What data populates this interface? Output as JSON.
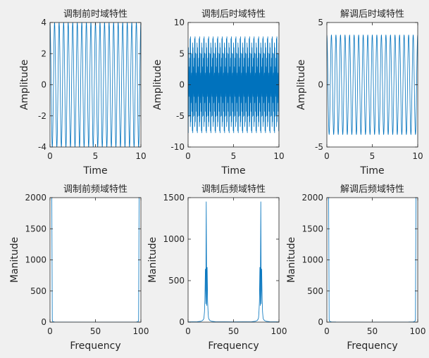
{
  "figure": {
    "background": "#f0f0f0",
    "line_color": "#0072bd",
    "axes_color": "#262626"
  },
  "chart_data": [
    {
      "type": "line",
      "title": "调制前时域特性",
      "xlabel": "Time",
      "ylabel": "Amplitude",
      "xlim": [
        0,
        10
      ],
      "ylim": [
        -4,
        4
      ],
      "xticks": [
        0,
        5,
        10
      ],
      "xtick_labels": [
        "0",
        "5",
        "10"
      ],
      "yticks": [
        -4,
        -2,
        0,
        2,
        4
      ],
      "ytick_labels": [
        "-4",
        "-2",
        "0",
        "2",
        "4"
      ],
      "signal": {
        "kind": "sine",
        "amplitude": 4,
        "frequency": 2,
        "sample_rate": 100,
        "duration": 10
      }
    },
    {
      "type": "line",
      "title": "调制后时域特性",
      "xlabel": "Time",
      "ylabel": "Amplitude",
      "xlim": [
        0,
        10
      ],
      "ylim": [
        -10,
        10
      ],
      "xticks": [
        0,
        5,
        10
      ],
      "xtick_labels": [
        "0",
        "5",
        "10"
      ],
      "yticks": [
        -10,
        -5,
        0,
        5,
        10
      ],
      "ytick_labels": [
        "-10",
        "-5",
        "0",
        "5",
        "10"
      ],
      "signal": {
        "kind": "dsb",
        "amplitude": 8,
        "message_frequency": 2,
        "carrier_frequency": 20,
        "sample_rate": 100,
        "duration": 10
      }
    },
    {
      "type": "line",
      "title": "解调后时域特性",
      "xlabel": "Time",
      "ylabel": "Amplitude",
      "xlim": [
        0,
        10
      ],
      "ylim": [
        -5,
        5
      ],
      "xticks": [
        0,
        5,
        10
      ],
      "xtick_labels": [
        "0",
        "5",
        "10"
      ],
      "yticks": [
        -5,
        0,
        5
      ],
      "ytick_labels": [
        "-5",
        "0",
        "5"
      ],
      "signal": {
        "kind": "sine",
        "amplitude": 4,
        "frequency": 2,
        "sample_rate": 100,
        "duration": 10
      }
    },
    {
      "type": "line",
      "title": "调制前频域特性",
      "xlabel": "Frequency",
      "ylabel": "Manitude",
      "xlim": [
        0,
        100
      ],
      "ylim": [
        0,
        2000
      ],
      "xticks": [
        0,
        50,
        100
      ],
      "xtick_labels": [
        "0",
        "50",
        "100"
      ],
      "yticks": [
        0,
        500,
        1000,
        1500,
        2000
      ],
      "ytick_labels": [
        "0",
        "500",
        "1000",
        "1500",
        "2000"
      ],
      "x": [
        0,
        0.5,
        1,
        1.5,
        2,
        2.5,
        3,
        4,
        5,
        10,
        50,
        90,
        95,
        96,
        97,
        97.5,
        98,
        98.5,
        99,
        99.5,
        100
      ],
      "y": [
        2000,
        2000,
        2000,
        2000,
        2000,
        40,
        10,
        5,
        2,
        1,
        0,
        1,
        2,
        5,
        10,
        40,
        2000,
        2000,
        2000,
        2000,
        2000
      ]
    },
    {
      "type": "line",
      "title": "调制后频域特性",
      "xlabel": "Frequency",
      "ylabel": "Manitude",
      "xlim": [
        0,
        100
      ],
      "ylim": [
        0,
        1500
      ],
      "xticks": [
        0,
        50,
        100
      ],
      "xtick_labels": [
        "0",
        "50",
        "100"
      ],
      "yticks": [
        0,
        500,
        1000,
        1500
      ],
      "ytick_labels": [
        "0",
        "500",
        "1000",
        "1500"
      ],
      "x": [
        0,
        10,
        14,
        16,
        17,
        17.5,
        18,
        18.5,
        19,
        19.5,
        20,
        20.5,
        21,
        21.5,
        22,
        22.5,
        23,
        24,
        26,
        30,
        50,
        70,
        74,
        76,
        77,
        77.5,
        78,
        78.5,
        79,
        79.5,
        80,
        80.5,
        81,
        81.5,
        82,
        82.5,
        83,
        84,
        86,
        90,
        100
      ],
      "y": [
        3,
        5,
        10,
        20,
        35,
        50,
        120,
        260,
        640,
        220,
        1450,
        200,
        660,
        250,
        120,
        50,
        35,
        20,
        10,
        5,
        3,
        5,
        10,
        20,
        35,
        50,
        120,
        250,
        660,
        200,
        1450,
        220,
        640,
        260,
        120,
        50,
        35,
        20,
        10,
        5,
        3
      ]
    },
    {
      "type": "line",
      "title": "解调后频域特性",
      "xlabel": "Frequency",
      "ylabel": "Manitude",
      "xlim": [
        0,
        100
      ],
      "ylim": [
        0,
        2000
      ],
      "xticks": [
        0,
        50,
        100
      ],
      "xtick_labels": [
        "0",
        "50",
        "100"
      ],
      "yticks": [
        0,
        500,
        1000,
        1500,
        2000
      ],
      "ytick_labels": [
        "0",
        "500",
        "1000",
        "1500",
        "2000"
      ],
      "x": [
        0,
        0.5,
        1,
        1.5,
        2,
        2.5,
        3,
        4,
        5,
        10,
        50,
        90,
        95,
        96,
        97,
        97.5,
        98,
        98.5,
        99,
        99.5,
        100
      ],
      "y": [
        2000,
        2000,
        2000,
        2000,
        2000,
        40,
        15,
        8,
        4,
        2,
        0,
        2,
        4,
        8,
        15,
        40,
        2000,
        2000,
        2000,
        2000,
        2000
      ]
    }
  ]
}
